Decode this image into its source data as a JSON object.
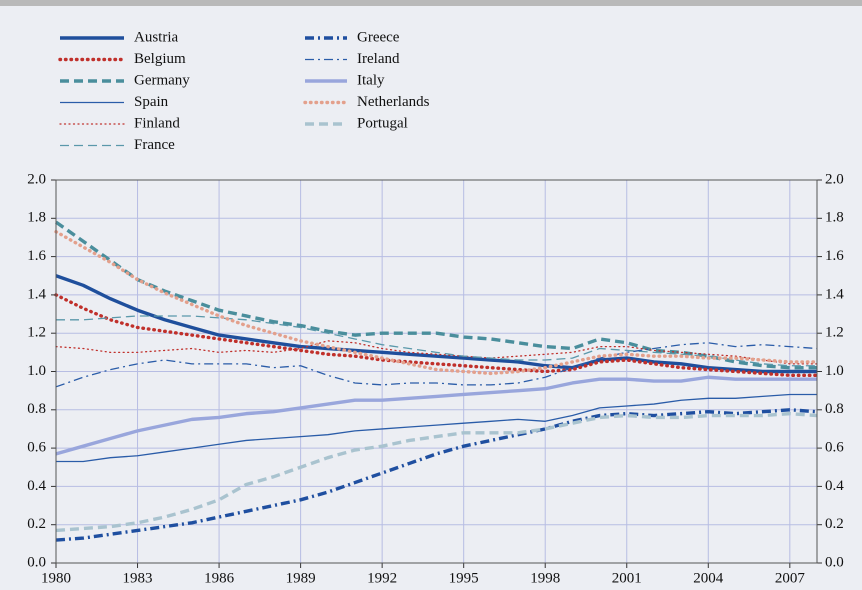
{
  "chart_data": {
    "type": "line",
    "x": [
      1980,
      1981,
      1982,
      1983,
      1984,
      1985,
      1986,
      1987,
      1988,
      1989,
      1990,
      1991,
      1992,
      1993,
      1994,
      1995,
      1996,
      1997,
      1998,
      1999,
      2000,
      2001,
      2002,
      2003,
      2004,
      2005,
      2006,
      2007,
      2008
    ],
    "xlim": [
      1980,
      2008
    ],
    "xticks": [
      1980,
      1983,
      1986,
      1989,
      1992,
      1995,
      1998,
      2001,
      2004,
      2007
    ],
    "ylim": [
      0,
      2
    ],
    "yticks": [
      {
        "value": 0,
        "label": "0.0"
      },
      0.2,
      0.4,
      0.6,
      0.8,
      {
        "value": 1,
        "label": "1.0"
      },
      1.2,
      1.4,
      1.6,
      1.8,
      {
        "value": 2,
        "label": "2.0"
      }
    ],
    "y2lim": [
      0,
      2
    ],
    "y2ticks": [
      {
        "value": 0,
        "label": "0.0"
      },
      0.2,
      0.4,
      0.6,
      0.8,
      {
        "value": 1,
        "label": "1.0"
      },
      1.2,
      1.4,
      1.6,
      1.8,
      {
        "value": 2,
        "label": "2.0"
      }
    ],
    "grid": true,
    "legend": "top-left",
    "series": [
      {
        "name": "Austria",
        "color": "#1f4f9c",
        "linestyle": "solid",
        "weight": "heavy",
        "values": [
          1.5,
          1.45,
          1.38,
          1.32,
          1.27,
          1.23,
          1.19,
          1.17,
          1.15,
          1.13,
          1.12,
          1.11,
          1.1,
          1.09,
          1.08,
          1.07,
          1.06,
          1.05,
          1.03,
          1.02,
          1.06,
          1.07,
          1.05,
          1.04,
          1.02,
          1.01,
          1.0,
          1.0,
          1.0
        ]
      },
      {
        "name": "Belgium",
        "color": "#c0302b",
        "linestyle": "dotted",
        "weight": "heavy",
        "values": [
          1.4,
          1.33,
          1.27,
          1.23,
          1.21,
          1.19,
          1.17,
          1.15,
          1.13,
          1.11,
          1.09,
          1.08,
          1.06,
          1.05,
          1.04,
          1.03,
          1.02,
          1.01,
          1.0,
          1.01,
          1.05,
          1.06,
          1.04,
          1.02,
          1.01,
          1.0,
          0.99,
          0.98,
          0.98
        ]
      },
      {
        "name": "Germany",
        "color": "#4a8e9c",
        "linestyle": "dashed",
        "weight": "heavy",
        "values": [
          1.78,
          1.68,
          1.58,
          1.48,
          1.42,
          1.37,
          1.32,
          1.29,
          1.26,
          1.24,
          1.21,
          1.19,
          1.2,
          1.2,
          1.2,
          1.18,
          1.17,
          1.15,
          1.13,
          1.12,
          1.17,
          1.15,
          1.11,
          1.1,
          1.08,
          1.05,
          1.03,
          1.02,
          1.02
        ]
      },
      {
        "name": "Spain",
        "color": "#2a5ca8",
        "linestyle": "solid",
        "weight": "light",
        "values": [
          0.53,
          0.53,
          0.55,
          0.56,
          0.58,
          0.6,
          0.62,
          0.64,
          0.65,
          0.66,
          0.67,
          0.69,
          0.7,
          0.71,
          0.72,
          0.73,
          0.74,
          0.75,
          0.74,
          0.77,
          0.81,
          0.82,
          0.83,
          0.85,
          0.86,
          0.86,
          0.87,
          0.88,
          0.88
        ]
      },
      {
        "name": "Finland",
        "color": "#c0302b",
        "linestyle": "dotted",
        "weight": "light",
        "values": [
          1.13,
          1.12,
          1.1,
          1.1,
          1.11,
          1.12,
          1.1,
          1.11,
          1.1,
          1.12,
          1.16,
          1.15,
          1.12,
          1.1,
          1.09,
          1.08,
          1.07,
          1.08,
          1.09,
          1.1,
          1.13,
          1.13,
          1.11,
          1.1,
          1.09,
          1.08,
          1.06,
          1.04,
          1.04
        ]
      },
      {
        "name": "France",
        "color": "#5a98aa",
        "linestyle": "dashed",
        "weight": "light",
        "values": [
          1.27,
          1.27,
          1.28,
          1.29,
          1.29,
          1.29,
          1.28,
          1.27,
          1.25,
          1.23,
          1.2,
          1.17,
          1.14,
          1.12,
          1.1,
          1.08,
          1.07,
          1.06,
          1.06,
          1.07,
          1.12,
          1.11,
          1.1,
          1.09,
          1.08,
          1.06,
          1.04,
          1.03,
          1.03
        ]
      },
      {
        "name": "Greece",
        "color": "#1f4fa0",
        "linestyle": "dashdot",
        "weight": "heavy",
        "values": [
          0.12,
          0.13,
          0.15,
          0.17,
          0.19,
          0.21,
          0.24,
          0.27,
          0.3,
          0.33,
          0.37,
          0.42,
          0.47,
          0.52,
          0.57,
          0.61,
          0.64,
          0.67,
          0.7,
          0.74,
          0.77,
          0.78,
          0.77,
          0.78,
          0.79,
          0.78,
          0.79,
          0.8,
          0.79
        ]
      },
      {
        "name": "Ireland",
        "color": "#2a5ca8",
        "linestyle": "dashdot",
        "weight": "light",
        "values": [
          0.92,
          0.97,
          1.01,
          1.04,
          1.06,
          1.04,
          1.04,
          1.04,
          1.02,
          1.03,
          0.98,
          0.94,
          0.93,
          0.94,
          0.94,
          0.93,
          0.93,
          0.94,
          0.97,
          1.02,
          1.07,
          1.1,
          1.12,
          1.14,
          1.15,
          1.13,
          1.14,
          1.13,
          1.12
        ]
      },
      {
        "name": "Italy",
        "color": "#99a6dc",
        "linestyle": "solid",
        "weight": "heavy",
        "values": [
          0.57,
          0.61,
          0.65,
          0.69,
          0.72,
          0.75,
          0.76,
          0.78,
          0.79,
          0.81,
          0.83,
          0.85,
          0.85,
          0.86,
          0.87,
          0.88,
          0.89,
          0.9,
          0.91,
          0.94,
          0.96,
          0.96,
          0.95,
          0.95,
          0.97,
          0.96,
          0.96,
          0.96,
          0.96
        ]
      },
      {
        "name": "Netherlands",
        "color": "#e3a08c",
        "linestyle": "dotted",
        "weight": "heavy",
        "values": [
          1.73,
          1.65,
          1.57,
          1.48,
          1.41,
          1.35,
          1.29,
          1.24,
          1.2,
          1.16,
          1.13,
          1.1,
          1.07,
          1.04,
          1.01,
          1.0,
          0.99,
          1.0,
          1.02,
          1.05,
          1.08,
          1.09,
          1.08,
          1.08,
          1.07,
          1.07,
          1.06,
          1.05,
          1.05
        ]
      },
      {
        "name": "Portugal",
        "color": "#a9c3cf",
        "linestyle": "dashed",
        "weight": "heavy",
        "values": [
          0.17,
          0.18,
          0.19,
          0.21,
          0.24,
          0.28,
          0.33,
          0.41,
          0.45,
          0.5,
          0.55,
          0.59,
          0.61,
          0.64,
          0.66,
          0.68,
          0.68,
          0.68,
          0.7,
          0.73,
          0.76,
          0.77,
          0.76,
          0.76,
          0.77,
          0.77,
          0.77,
          0.78,
          0.77
        ]
      }
    ]
  }
}
